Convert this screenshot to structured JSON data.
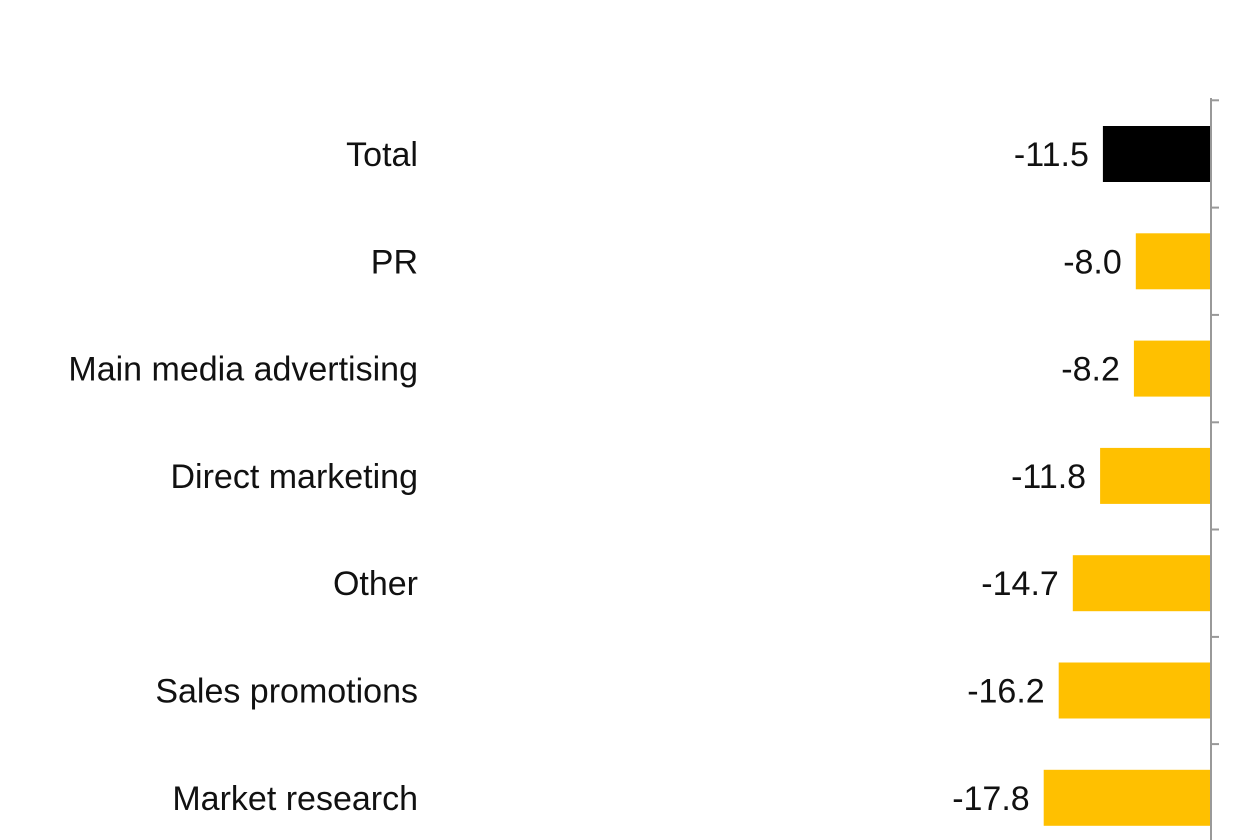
{
  "chart_data": {
    "type": "bar",
    "orientation": "horizontal",
    "title": "",
    "xlabel": "",
    "ylabel": "",
    "categories": [
      "Total",
      "PR",
      "Main media advertising",
      "Direct marketing",
      "Other",
      "Sales promotions",
      "Market research"
    ],
    "values": [
      -11.5,
      -8.0,
      -8.2,
      -11.8,
      -14.7,
      -16.2,
      -17.8
    ],
    "value_labels": [
      "-11.5",
      "-8.0",
      "-8.2",
      "-11.8",
      "-14.7",
      "-16.2",
      "-17.8"
    ],
    "xlim": [
      -40,
      0
    ],
    "grid": false,
    "colors": {
      "total": "#000000",
      "bars": "#FFC000",
      "axis": "#999999"
    }
  }
}
